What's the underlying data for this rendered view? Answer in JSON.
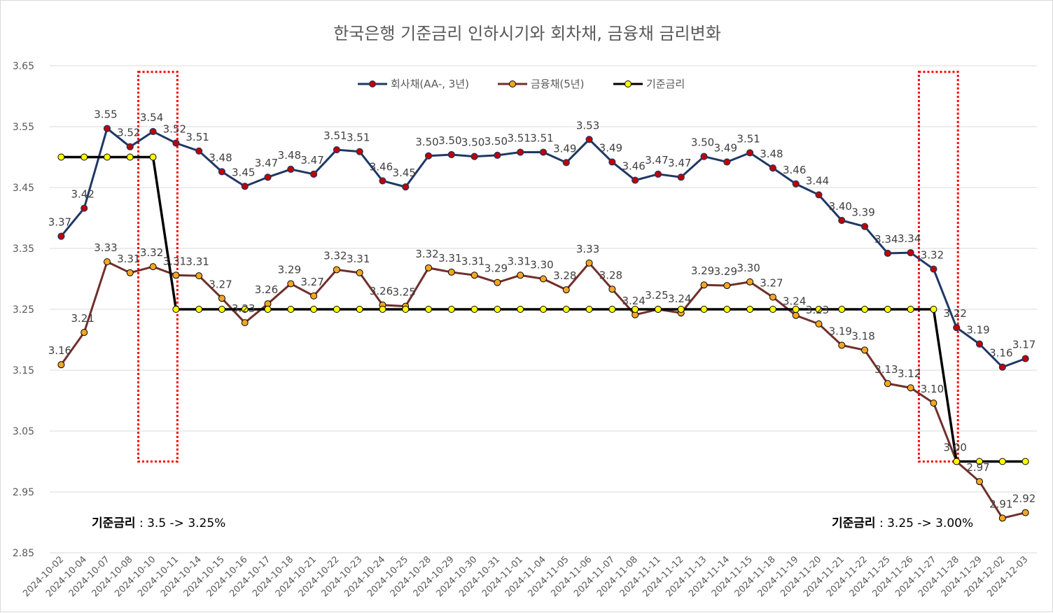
{
  "chart_data": {
    "type": "line",
    "title": "한국은행 기준금리 인하시기와 회차채, 금융채 금리변화",
    "xlabel": "",
    "ylabel": "",
    "ylim": [
      2.85,
      3.65
    ],
    "yticks": [
      "2.85",
      "2.95",
      "3.05",
      "3.15",
      "3.25",
      "3.35",
      "3.45",
      "3.55",
      "3.65"
    ],
    "grid": "horizontal",
    "legend_position": "top-center",
    "categories": [
      "2024-10-02",
      "2024-10-04",
      "2024-10-07",
      "2024-10-08",
      "2024-10-10",
      "2024-10-11",
      "2024-10-14",
      "2024-10-15",
      "2024-10-16",
      "2024-10-17",
      "2024-10-18",
      "2024-10-21",
      "2024-10-22",
      "2024-10-23",
      "2024-10-24",
      "2024-10-25",
      "2024-10-28",
      "2024-10-29",
      "2024-10-30",
      "2024-10-31",
      "2024-11-01",
      "2024-11-04",
      "2024-11-05",
      "2024-11-06",
      "2024-11-07",
      "2024-11-08",
      "2024-11-11",
      "2024-11-12",
      "2024-11-13",
      "2024-11-14",
      "2024-11-15",
      "2024-11-18",
      "2024-11-19",
      "2024-11-20",
      "2024-11-21",
      "2024-11-22",
      "2024-11-25",
      "2024-11-26",
      "2024-11-27",
      "2024-11-28",
      "2024-11-29",
      "2024-12-02",
      "2024-12-03"
    ],
    "series": [
      {
        "name": "회사채(AA-, 3년)",
        "line_color": "#1f3864",
        "marker_color": "#c00000",
        "show_labels": true,
        "values": [
          3.37,
          3.416,
          3.547,
          3.517,
          3.542,
          3.523,
          3.51,
          3.476,
          3.452,
          3.467,
          3.48,
          3.472,
          3.512,
          3.509,
          3.461,
          3.451,
          3.502,
          3.504,
          3.501,
          3.503,
          3.508,
          3.508,
          3.491,
          3.529,
          3.492,
          3.462,
          3.472,
          3.467,
          3.501,
          3.492,
          3.507,
          3.482,
          3.456,
          3.438,
          3.396,
          3.386,
          3.342,
          3.343,
          3.316,
          3.22,
          3.193,
          3.155,
          3.169
        ],
        "labels": [
          "3.37",
          "3.42",
          "3.55",
          "3.52",
          "3.54",
          "3.52",
          "3.51",
          "3.48",
          "3.45",
          "3.47",
          "3.48",
          "3.47",
          "3.51",
          "3.51",
          "3.46",
          "3.45",
          "3.50",
          "3.50",
          "3.50",
          "3.50",
          "3.51",
          "3.51",
          "3.49",
          "3.53",
          "3.49",
          "3.46",
          "3.47",
          "3.47",
          "3.50",
          "3.49",
          "3.51",
          "3.48",
          "3.46",
          "3.44",
          "3.40",
          "3.39",
          "3.34",
          "3.34",
          "3.32",
          "3.22",
          "3.19",
          "3.16",
          "3.17"
        ]
      },
      {
        "name": "금융채(5년)",
        "line_color": "#70302c",
        "marker_color": "#f5a623",
        "show_labels": true,
        "values": [
          3.159,
          3.212,
          3.328,
          3.31,
          3.32,
          3.306,
          3.305,
          3.268,
          3.228,
          3.259,
          3.292,
          3.272,
          3.315,
          3.31,
          3.257,
          3.255,
          3.318,
          3.311,
          3.306,
          3.294,
          3.306,
          3.3,
          3.282,
          3.326,
          3.283,
          3.241,
          3.25,
          3.244,
          3.29,
          3.289,
          3.295,
          3.27,
          3.24,
          3.226,
          3.191,
          3.183,
          3.128,
          3.121,
          3.096,
          3.0,
          2.967,
          2.907,
          2.916
        ],
        "labels": [
          "3.16",
          "3.21",
          "3.33",
          "3.31",
          "3.32",
          "3.31",
          "3.31",
          "3.27",
          "3.23",
          "3.26",
          "3.29",
          "3.27",
          "3.32",
          "3.31",
          "3.26",
          "3.25",
          "3.32",
          "3.31",
          "3.31",
          "3.29",
          "3.31",
          "3.30",
          "3.28",
          "3.33",
          "3.28",
          "3.24",
          "3.25",
          "3.24",
          "3.29",
          "3.29",
          "3.30",
          "3.27",
          "3.24",
          "3.23",
          "3.19",
          "3.18",
          "3.13",
          "3.12",
          "3.10",
          "3.00",
          "2.97",
          "2.91",
          "2.92"
        ]
      },
      {
        "name": "기준금리",
        "line_color": "#000000",
        "marker_color": "#ffff00",
        "show_labels": false,
        "values": [
          3.5,
          3.5,
          3.5,
          3.5,
          3.5,
          3.25,
          3.25,
          3.25,
          3.25,
          3.25,
          3.25,
          3.25,
          3.25,
          3.25,
          3.25,
          3.25,
          3.25,
          3.25,
          3.25,
          3.25,
          3.25,
          3.25,
          3.25,
          3.25,
          3.25,
          3.25,
          3.25,
          3.25,
          3.25,
          3.25,
          3.25,
          3.25,
          3.25,
          3.25,
          3.25,
          3.25,
          3.25,
          3.25,
          3.25,
          3.0,
          3.0,
          3.0,
          3.0
        ]
      }
    ],
    "highlight_boxes": [
      {
        "from_index": 4,
        "to_index": 5,
        "y_top": 3.64,
        "y_bottom": 3.0,
        "color": "#ff0000"
      },
      {
        "from_index": 38,
        "to_index": 39,
        "y_top": 3.64,
        "y_bottom": 3.0,
        "color": "#ff0000"
      }
    ],
    "annotations": [
      {
        "bold": "기준금리",
        "rest": " : 3.5 -> 3.25%",
        "position": "bottom-left"
      },
      {
        "bold": "기준금리",
        "rest": " : 3.25 -> 3.00%",
        "position": "bottom-right"
      }
    ]
  }
}
